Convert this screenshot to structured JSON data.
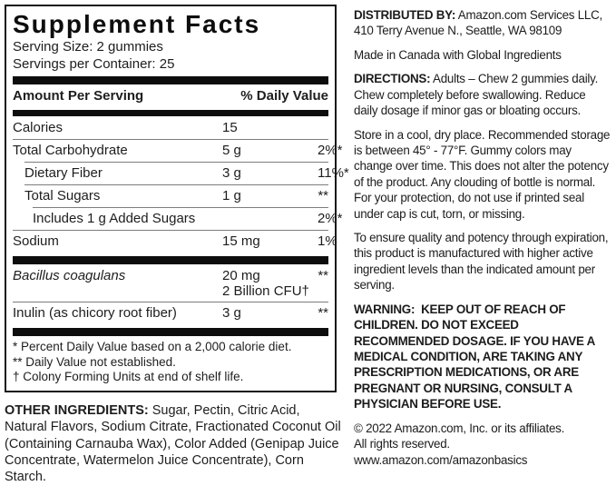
{
  "panel": {
    "title": "Supplement Facts",
    "serving_size": "Serving Size: 2 gummies",
    "servings_per_container": "Servings per Container: 25",
    "header": {
      "amount": "Amount Per Serving",
      "dv": "% Daily Value"
    },
    "rows": [
      {
        "name": "Calories",
        "amount": "15",
        "dv": ""
      },
      {
        "name": "Total Carbohydrate",
        "amount": "5 g",
        "dv": "2%*"
      },
      {
        "name": "Dietary Fiber",
        "amount": "3 g",
        "dv": "11%*"
      },
      {
        "name": "Total Sugars",
        "amount": "1 g",
        "dv": "**"
      },
      {
        "name": "Includes 1 g Added Sugars",
        "amount": "",
        "dv": "2%*"
      },
      {
        "name": "Sodium",
        "amount": "15 mg",
        "dv": "1%"
      },
      {
        "name": "Bacillus coagulans",
        "amount": "20 mg",
        "amount2": "2 Billion CFU†",
        "dv": "**"
      },
      {
        "name": "Inulin (as chicory root fiber)",
        "amount": "3 g",
        "dv": "**"
      }
    ],
    "footnotes": [
      "* Percent Daily Value based on a 2,000 calorie diet.",
      "** Daily Value not established.",
      "† Colony Forming Units at end of shelf life."
    ]
  },
  "other_ingredients": {
    "label": "OTHER INGREDIENTS:",
    "text": "Sugar, Pectin, Citric Acid, Natural Flavors, Sodium Citrate, Fractionated Coconut Oil (Containing Carnauba Wax), Color Added (Genipap Juice Concentrate, Watermelon Juice Concentrate), Corn Starch."
  },
  "right": {
    "distributed": {
      "label": "DISTRIBUTED BY:",
      "text": "Amazon.com Services LLC, 410 Terry Avenue N., Seattle, WA 98109"
    },
    "made_in": "Made in Canada with Global Ingredients",
    "directions": {
      "label": "DIRECTIONS:",
      "text": "Adults – Chew 2 gummies daily. Chew completely before swallowing. Reduce daily dosage if minor gas or bloating occurs."
    },
    "storage": "Store in a cool, dry place. Recommended storage is between 45° - 77°F. Gummy colors may change over time. This does not alter the potency of the product. Any clouding of bottle is normal. For your protection, do not use if printed seal under cap is cut, torn, or missing.",
    "quality": "To ensure quality and potency through expiration, this product is manufactured with higher active ingredient levels than the indicated amount per serving.",
    "warning": {
      "label": "WARNING:",
      "text": "KEEP OUT OF REACH OF CHILDREN. DO NOT EXCEED RECOMMENDED DOSAGE. IF YOU HAVE A MEDICAL CONDITION, ARE TAKING ANY PRESCRIPTION MEDICATIONS, OR ARE PREGNANT OR NURSING, CONSULT A PHYSICIAN BEFORE USE."
    },
    "copyright_line1": "© 2022 Amazon.com, Inc. or its affiliates.",
    "copyright_line2": "All rights reserved.",
    "copyright_line3": "www.amazon.com/amazonbasics"
  },
  "colors": {
    "text": "#1d1d1d",
    "bar": "#0d0d0d",
    "hairline": "#7d7d7d"
  }
}
